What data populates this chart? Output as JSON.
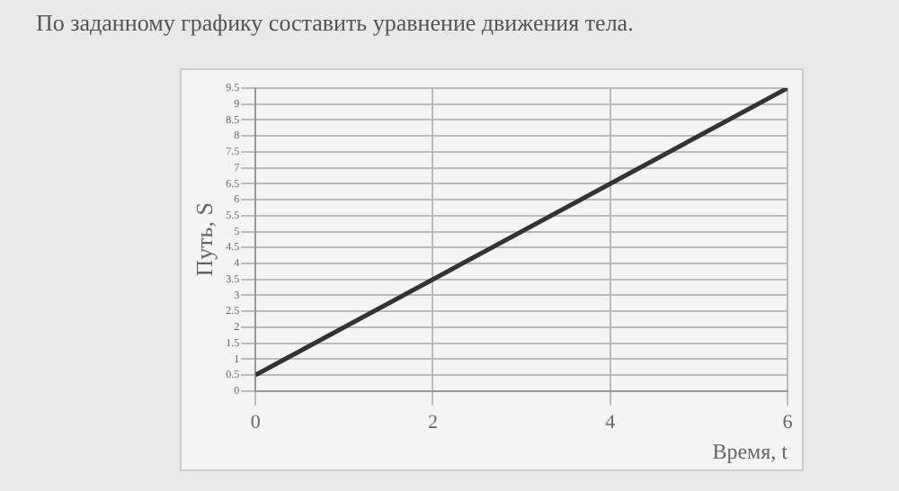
{
  "chart_data": {
    "type": "line",
    "title": "По заданному графику составить уравнение движения тела.",
    "xlabel": "Время, t",
    "ylabel": "Путь, S",
    "x": [
      0,
      6
    ],
    "values": [
      0.5,
      9.5
    ],
    "color": "#333333",
    "xlim": [
      0,
      6
    ],
    "xticks": [
      0,
      2,
      4,
      6
    ],
    "ylim": [
      0,
      9.5
    ],
    "yticks": [
      0,
      0.5,
      1,
      1.5,
      2,
      2.5,
      3,
      3.5,
      4,
      4.5,
      5,
      5.5,
      6,
      6.5,
      7,
      7.5,
      8,
      8.5,
      9,
      9.5
    ],
    "grid": true,
    "marker": "none",
    "line_style": "solid"
  }
}
